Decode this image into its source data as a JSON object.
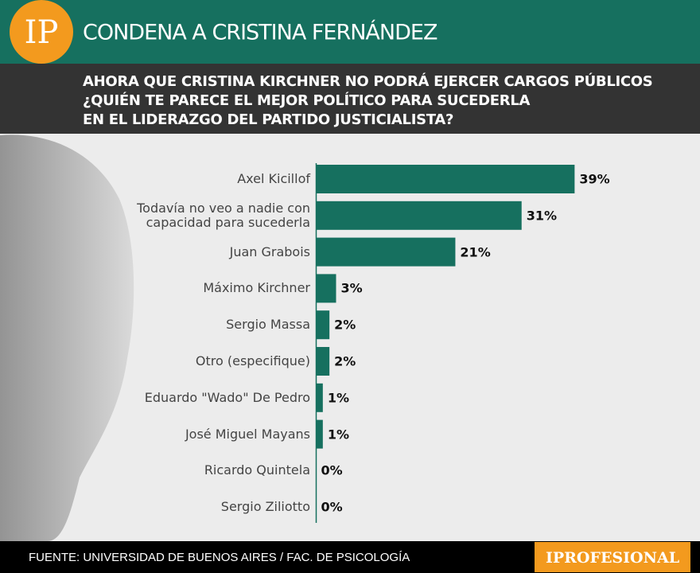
{
  "header": {
    "logo": "IP"
  },
  "chart_data": {
    "type": "bar",
    "orientation": "horizontal",
    "title": "CONDENA A CRISTINA FERNÁNDEZ",
    "subtitle": [
      "AHORA QUE CRISTINA KIRCHNER NO PODRÁ EJERCER CARGOS PÚBLICOS",
      "¿QUIÉN TE PARECE EL MEJOR POLÍTICO PARA SUCEDERLA",
      "EN EL LIDERAZGO DEL PARTIDO JUSTICIALISTA?"
    ],
    "categories": [
      "Axel Kicillof",
      "Todavía no veo a nadie con capacidad para sucederla",
      "Juan Grabois",
      "Máximo Kirchner",
      "Sergio Massa",
      "Otro (especifique)",
      "Eduardo \"Wado\" De Pedro",
      "José Miguel Mayans",
      "Ricardo Quintela",
      "Sergio Ziliotto"
    ],
    "values": [
      39,
      31,
      21,
      3,
      2,
      2,
      1,
      1,
      0,
      0
    ],
    "value_labels": [
      "39%",
      "31%",
      "21%",
      "3%",
      "2%",
      "2%",
      "1%",
      "1%",
      "0%",
      "0%"
    ],
    "color": "#16705f",
    "source": "FUENTE: UNIVERSIDAD DE BUENOS AIRES / FAC. DE PSICOLOGÍA"
  },
  "footer": {
    "brand": "IPROFESIONAL"
  }
}
